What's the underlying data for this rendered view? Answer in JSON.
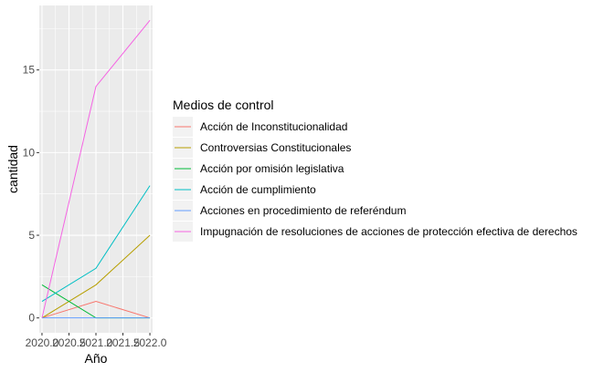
{
  "chart_data": {
    "type": "line",
    "xlabel": "Año",
    "ylabel": "cantidad",
    "x": [
      2020,
      2021,
      2022
    ],
    "x_ticks": [
      2020.0,
      2020.5,
      2021.0,
      2021.5,
      2022.0
    ],
    "x_tick_labels": [
      "2020.0",
      "2020.5",
      "2021.0",
      "2021.5",
      "2022.0"
    ],
    "xlim": [
      2019.95,
      2022.05
    ],
    "y_ticks": [
      0,
      5,
      10,
      15
    ],
    "y_tick_labels": [
      "0",
      "5",
      "10",
      "15"
    ],
    "ylim": [
      -0.9,
      18.9
    ],
    "grid": true,
    "legend": {
      "title": "Medios de control",
      "placement": "right"
    },
    "series": [
      {
        "name": "Acción de Inconstitucionalidad",
        "color": "#F8766D",
        "values": [
          0,
          1,
          0
        ]
      },
      {
        "name": "Controversias Constitucionales",
        "color": "#B79F00",
        "values": [
          0,
          2,
          5
        ]
      },
      {
        "name": "Acción por omisión legislativa",
        "color": "#00BA38",
        "values": [
          2,
          0,
          0
        ]
      },
      {
        "name": "Acción de cumplimiento",
        "color": "#00BFC4",
        "values": [
          1,
          3,
          8
        ]
      },
      {
        "name": "Acciones en procedimiento de referéndum",
        "color": "#619CFF",
        "values": [
          0,
          0,
          0
        ]
      },
      {
        "name": "Impugnación de resoluciones de acciones de protección efectiva de derechos",
        "color": "#F564E3",
        "values": [
          0,
          14,
          18
        ]
      }
    ]
  }
}
